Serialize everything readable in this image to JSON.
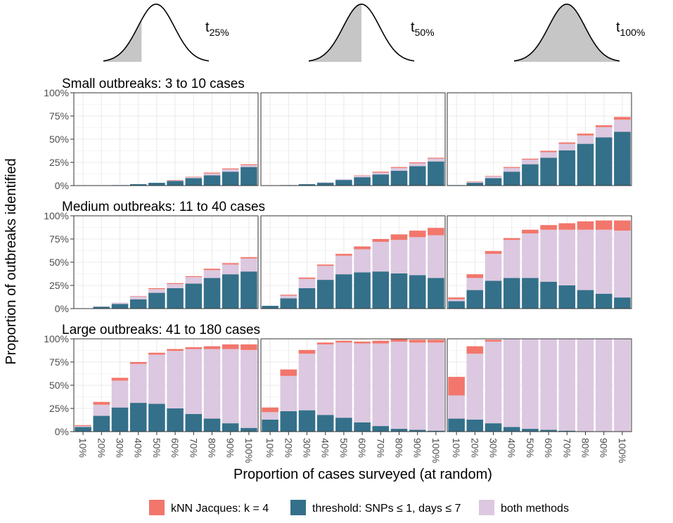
{
  "chart_data": {
    "type": "bar",
    "stacked": true,
    "grid": true,
    "ylabel": "Proportion of outbreaks identified",
    "xlabel": "Proportion of cases surveyed (at random)",
    "ylim": [
      0,
      100
    ],
    "yticks": [
      "0%",
      "25%",
      "50%",
      "75%",
      "100%"
    ],
    "categories": [
      "10%",
      "20%",
      "30%",
      "40%",
      "50%",
      "60%",
      "70%",
      "80%",
      "90%",
      "100%"
    ],
    "columns": [
      {
        "name": "t",
        "subscript": "25%",
        "shade_quantile": 0.25
      },
      {
        "name": "t",
        "subscript": "50%",
        "shade_quantile": 0.5
      },
      {
        "name": "t",
        "subscript": "100%",
        "shade_quantile": 1.0
      }
    ],
    "legend": {
      "position": "bottom",
      "items": [
        {
          "key": "knn",
          "label": "kNN Jacques: k = 4",
          "color": "#F2766B"
        },
        {
          "key": "threshold",
          "label": "threshold: SNPs ≤ 1, days ≤ 7",
          "color": "#34708A"
        },
        {
          "key": "both",
          "label": "both methods",
          "color": "#DCC8E0"
        }
      ]
    },
    "stack_order": [
      "threshold",
      "both",
      "knn"
    ],
    "rows": [
      {
        "label": "Small outbreaks: 3 to 10 cases",
        "panels": [
          {
            "threshold": [
              0,
              0,
              0.5,
              1.5,
              3,
              5,
              8,
              11,
              15,
              20
            ],
            "both": [
              0,
              0,
              0,
              0,
              0,
              0.5,
              1,
              2,
              2.5,
              2
            ],
            "knn": [
              0,
              0,
              0,
              0,
              0,
              0.5,
              0.5,
              1,
              1,
              1
            ]
          },
          {
            "threshold": [
              0,
              0.5,
              1.5,
              3,
              6,
              9,
              12,
              16,
              21,
              26
            ],
            "both": [
              0,
              0,
              0,
              0.5,
              1,
              1.5,
              2,
              3,
              3,
              3
            ],
            "knn": [
              0,
              0,
              0,
              0,
              0,
              0.5,
              1,
              1,
              1,
              1
            ]
          },
          {
            "threshold": [
              0.5,
              3,
              8,
              15,
              23,
              30,
              38,
              45,
              52,
              58
            ],
            "both": [
              0,
              1,
              2,
              4,
              5,
              6,
              7,
              9,
              11,
              13
            ],
            "knn": [
              0,
              0.5,
              0.5,
              1,
              1,
              1.5,
              1.5,
              2,
              2,
              3
            ]
          }
        ]
      },
      {
        "label": "Medium outbreaks: 11 to 40 cases",
        "panels": [
          {
            "threshold": [
              0,
              2,
              5,
              10,
              17,
              22,
              27,
              33,
              37,
              40
            ],
            "both": [
              0,
              0.5,
              1.5,
              3,
              4,
              4.5,
              7,
              8.5,
              10.5,
              14
            ],
            "knn": [
              0,
              0,
              0,
              0.5,
              1,
              1,
              1,
              1.5,
              1.5,
              1.5
            ]
          },
          {
            "threshold": [
              3,
              11,
              22,
              31,
              37,
              39,
              40,
              38,
              36,
              33
            ],
            "both": [
              0,
              3,
              10,
              15,
              20,
              25,
              32,
              36,
              41,
              46
            ],
            "knn": [
              0,
              1,
              1.5,
              1.5,
              2,
              3,
              3,
              6,
              7,
              8
            ]
          },
          {
            "threshold": [
              8,
              20,
              30,
              33,
              33,
              29,
              25,
              20,
              16,
              12
            ],
            "both": [
              2,
              13,
              29,
              41,
              48,
              56,
              60,
              65,
              69,
              72
            ],
            "knn": [
              2,
              4,
              3,
              2,
              4,
              5,
              7,
              9,
              10,
              11
            ]
          }
        ]
      },
      {
        "label": "Large outbreaks: 41 to 180 cases",
        "panels": [
          {
            "threshold": [
              5,
              17,
              26,
              31,
              30,
              25,
              19,
              14,
              9,
              4
            ],
            "both": [
              1,
              12,
              29,
              42,
              53,
              62,
              70,
              75,
              80,
              84
            ],
            "knn": [
              1,
              3,
              3,
              2,
              2,
              2,
              2,
              3,
              5,
              6
            ]
          },
          {
            "threshold": [
              13,
              22,
              23,
              18,
              15,
              10,
              6,
              3,
              2,
              1
            ],
            "both": [
              8,
              38,
              61,
              76,
              81,
              85,
              89,
              94,
              94,
              95
            ],
            "knn": [
              5,
              7,
              4,
              2,
              2,
              2,
              3,
              3,
              3,
              3
            ]
          },
          {
            "threshold": [
              14,
              13,
              9,
              5,
              3,
              2,
              1,
              0.5,
              0,
              0
            ],
            "both": [
              25,
              71,
              88,
              95,
              97,
              98,
              99,
              99.5,
              100,
              100
            ],
            "knn": [
              20,
              8,
              2,
              0,
              0,
              0,
              0,
              0,
              0,
              0
            ]
          }
        ]
      }
    ]
  }
}
